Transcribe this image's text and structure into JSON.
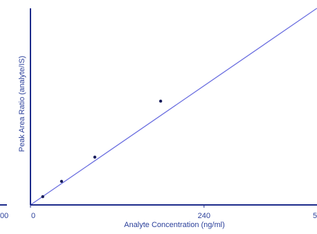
{
  "chart_data": {
    "type": "scatter",
    "x_label": "Analyte Concentration (ng/ml)",
    "y_label": "Peak Area Ratio (analyte/IS)",
    "x": [
      17,
      43,
      89,
      180
    ],
    "values": [
      0.042,
      0.12,
      0.243,
      0.528
    ],
    "point_color": "#1a1f5c",
    "fit_line": {
      "x": [
        0,
        396
      ],
      "values": [
        0,
        1
      ],
      "color": "#6b6fe0"
    },
    "xlim": [
      0,
      400
    ],
    "ylim": [
      0,
      1
    ],
    "xticks": [
      0,
      240
    ],
    "axis_color": "#1c2a8a",
    "cropped_texts": [
      "00",
      "5"
    ]
  }
}
